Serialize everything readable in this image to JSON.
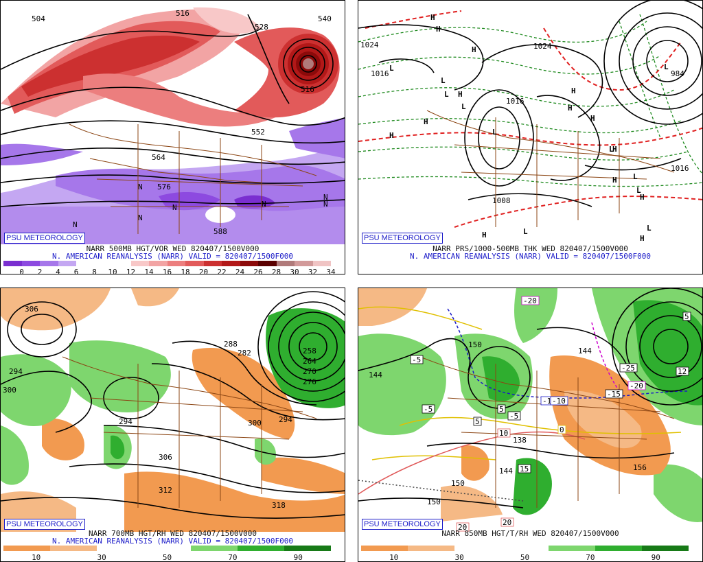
{
  "badge": "PSU METEOROLOGY",
  "panels": {
    "vor": {
      "caption1": "NARR 500MB HGT/VOR WED 820407/1500V000",
      "caption2": "N. AMERICAN REANALYSIS (NARR) VALID = 820407/1500F000",
      "scale": [
        "0",
        "2",
        "4",
        "6",
        "8",
        "10",
        "12",
        "14",
        "16",
        "18",
        "20",
        "22",
        "24",
        "26",
        "28",
        "30",
        "32",
        "34"
      ],
      "colors": [
        "#7a2fd0",
        "#8d4ae0",
        "#a677ea",
        "#c4a7f2",
        "#ffffff",
        "#ffffff",
        "#ffffff",
        "#f8c8c8",
        "#f2a4a4",
        "#ec7e7e",
        "#e25a5a",
        "#cc3030",
        "#b21818",
        "#8c0a0a",
        "#5a0000",
        "#b07a7a",
        "#d29a9a",
        "#f0c4c4"
      ],
      "labels": [
        "504",
        "516",
        "528",
        "540",
        "516",
        "564",
        "576",
        "588",
        "552"
      ],
      "n_mark": "N"
    },
    "prs": {
      "caption1": "NARR PRS/1000-500MB THK WED 820407/1500V000",
      "caption2": "N. AMERICAN REANALYSIS (NARR) VALID = 820407/1500F000",
      "labels": [
        "1024",
        "1016",
        "1024",
        "1016",
        "984",
        "1008",
        "1016"
      ],
      "high": "H",
      "low": "L"
    },
    "rh700": {
      "caption1": "NARR 700MB HGT/RH WED 820407/1500V000",
      "caption2": "N. AMERICAN REANALYSIS (NARR) VALID = 820407/1500F000",
      "scale": [
        "10",
        "30",
        "50",
        "70",
        "90"
      ],
      "colors": [
        "#f29a50",
        "#f5b985",
        "#ffffff",
        "#ffffff",
        "#7ed66e",
        "#2fae2f",
        "#177a17"
      ],
      "labels": [
        "306",
        "294",
        "300",
        "294",
        "288",
        "282",
        "258",
        "264",
        "270",
        "276",
        "300",
        "294",
        "306",
        "312",
        "318"
      ]
    },
    "t850": {
      "caption1": "NARR 850MB HGT/T/RH WED 820407/1500V000",
      "caption2": "",
      "scale": [
        "10",
        "30",
        "50",
        "70",
        "90"
      ],
      "colors": [
        "#f29a50",
        "#f5b985",
        "#ffffff",
        "#ffffff",
        "#7ed66e",
        "#2fae2f",
        "#177a17"
      ],
      "labels": [
        "150",
        "144",
        "144",
        "150",
        "156",
        "138",
        "144",
        "150"
      ],
      "temps": [
        "-20",
        "-10",
        "-5",
        "-5",
        "5",
        "5",
        "-5",
        "-10",
        "0",
        "-15",
        "-25",
        "-20",
        "5",
        "10",
        "15",
        "20",
        "20",
        "12"
      ]
    }
  }
}
